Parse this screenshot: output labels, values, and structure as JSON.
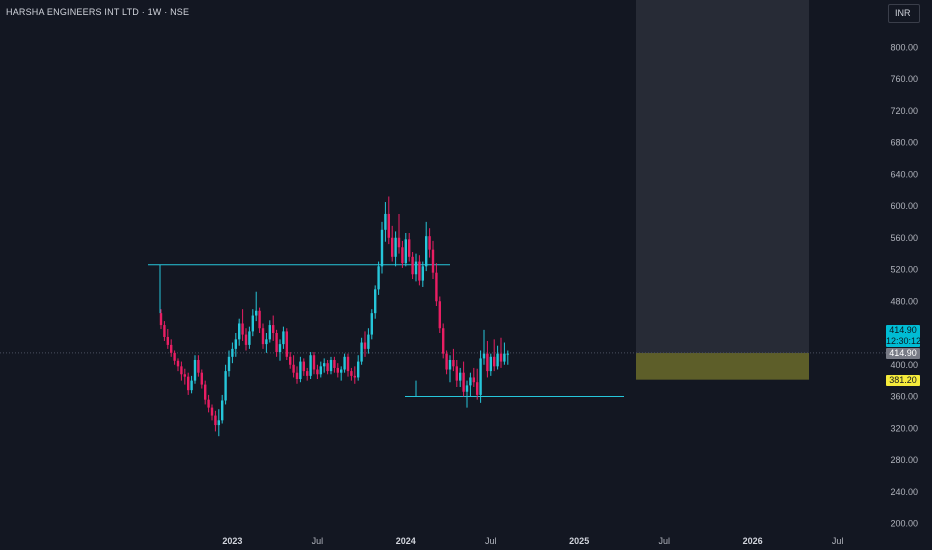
{
  "header": {
    "symbol": "HARSHA ENGINEERS INT LTD · 1W · NSE",
    "currency": "INR"
  },
  "price_labels": {
    "last": "414.90",
    "countdown": "12:30:12",
    "marker": "414.90",
    "stop": "381.20"
  },
  "colors": {
    "background": "#131722",
    "up": "#26c6da",
    "down": "#e91e63",
    "zone_gray": "#2a2e39",
    "zone_olive": "#6b6b2a",
    "trendline": "#26c6da"
  },
  "chart_data": {
    "type": "candlestick",
    "title": "HARSHA ENGINEERS INT LTD · 1W · NSE",
    "xlabel": "",
    "ylabel": "",
    "ylim": [
      200,
      830
    ],
    "y_ticks": [
      "800.00",
      "760.00",
      "720.00",
      "680.00",
      "640.00",
      "600.00",
      "560.00",
      "520.00",
      "480.00",
      "400.00",
      "360.00",
      "320.00",
      "280.00",
      "240.00",
      "200.00"
    ],
    "x_ticks": [
      {
        "label": "2023",
        "week": 21
      },
      {
        "label": "Jul",
        "week": 46
      },
      {
        "label": "2024",
        "week": 72
      },
      {
        "label": "Jul",
        "week": 97
      },
      {
        "label": "2025",
        "week": 123
      },
      {
        "label": "Jul",
        "week": 148
      },
      {
        "label": "2026",
        "week": 174
      },
      {
        "label": "Jul",
        "week": 199
      }
    ],
    "ohlc": [
      [
        465,
        470,
        445,
        450
      ],
      [
        450,
        455,
        430,
        435
      ],
      [
        435,
        445,
        420,
        425
      ],
      [
        425,
        432,
        410,
        415
      ],
      [
        415,
        418,
        400,
        405
      ],
      [
        405,
        408,
        392,
        398
      ],
      [
        398,
        404,
        380,
        388
      ],
      [
        388,
        395,
        375,
        385
      ],
      [
        385,
        390,
        362,
        368
      ],
      [
        368,
        386,
        364,
        380
      ],
      [
        380,
        412,
        376,
        406
      ],
      [
        406,
        412,
        385,
        390
      ],
      [
        390,
        394,
        370,
        375
      ],
      [
        375,
        380,
        350,
        356
      ],
      [
        356,
        362,
        340,
        346
      ],
      [
        346,
        350,
        330,
        336
      ],
      [
        336,
        342,
        316,
        324
      ],
      [
        324,
        344,
        310,
        330
      ],
      [
        330,
        362,
        326,
        355
      ],
      [
        355,
        400,
        350,
        392
      ],
      [
        392,
        418,
        385,
        410
      ],
      [
        410,
        428,
        402,
        420
      ],
      [
        420,
        440,
        410,
        432
      ],
      [
        432,
        458,
        424,
        452
      ],
      [
        452,
        470,
        430,
        438
      ],
      [
        438,
        446,
        418,
        425
      ],
      [
        425,
        448,
        420,
        442
      ],
      [
        442,
        470,
        436,
        462
      ],
      [
        462,
        492,
        455,
        468
      ],
      [
        468,
        472,
        440,
        446
      ],
      [
        446,
        452,
        420,
        426
      ],
      [
        426,
        440,
        415,
        432
      ],
      [
        432,
        456,
        428,
        450
      ],
      [
        450,
        462,
        430,
        440
      ],
      [
        440,
        444,
        410,
        416
      ],
      [
        416,
        432,
        405,
        426
      ],
      [
        426,
        448,
        420,
        442
      ],
      [
        442,
        446,
        406,
        410
      ],
      [
        410,
        416,
        395,
        400
      ],
      [
        400,
        412,
        384,
        390
      ],
      [
        390,
        398,
        376,
        382
      ],
      [
        382,
        410,
        378,
        404
      ],
      [
        404,
        408,
        386,
        392
      ],
      [
        392,
        396,
        380,
        386
      ],
      [
        386,
        416,
        382,
        412
      ],
      [
        412,
        416,
        388,
        394
      ],
      [
        394,
        400,
        382,
        388
      ],
      [
        388,
        404,
        384,
        398
      ],
      [
        398,
        408,
        390,
        402
      ],
      [
        402,
        406,
        388,
        392
      ],
      [
        392,
        410,
        388,
        406
      ],
      [
        406,
        410,
        390,
        396
      ],
      [
        396,
        402,
        384,
        390
      ],
      [
        390,
        398,
        380,
        394
      ],
      [
        394,
        414,
        390,
        410
      ],
      [
        410,
        414,
        385,
        392
      ],
      [
        392,
        396,
        380,
        386
      ],
      [
        386,
        398,
        376,
        384
      ],
      [
        384,
        412,
        380,
        404
      ],
      [
        404,
        434,
        400,
        428
      ],
      [
        428,
        442,
        410,
        420
      ],
      [
        420,
        446,
        414,
        438
      ],
      [
        438,
        470,
        432,
        465
      ],
      [
        465,
        500,
        458,
        495
      ],
      [
        495,
        530,
        488,
        524
      ],
      [
        524,
        580,
        515,
        570
      ],
      [
        570,
        605,
        555,
        590
      ],
      [
        590,
        612,
        552,
        560
      ],
      [
        560,
        575,
        530,
        536
      ],
      [
        536,
        568,
        524,
        560
      ],
      [
        560,
        590,
        540,
        548
      ],
      [
        548,
        556,
        522,
        528
      ],
      [
        528,
        566,
        524,
        558
      ],
      [
        558,
        566,
        530,
        536
      ],
      [
        536,
        542,
        508,
        514
      ],
      [
        514,
        540,
        505,
        530
      ],
      [
        530,
        538,
        500,
        506
      ],
      [
        506,
        530,
        498,
        524
      ],
      [
        524,
        580,
        518,
        562
      ],
      [
        562,
        572,
        535,
        545
      ],
      [
        545,
        556,
        508,
        516
      ],
      [
        516,
        528,
        474,
        480
      ],
      [
        480,
        486,
        440,
        446
      ],
      [
        446,
        452,
        408,
        414
      ],
      [
        414,
        418,
        388,
        394
      ],
      [
        394,
        412,
        378,
        406
      ],
      [
        406,
        420,
        392,
        398
      ],
      [
        398,
        406,
        372,
        380
      ],
      [
        380,
        396,
        372,
        390
      ],
      [
        390,
        404,
        360,
        366
      ],
      [
        366,
        380,
        346,
        374
      ],
      [
        374,
        390,
        360,
        384
      ],
      [
        384,
        396,
        372,
        378
      ],
      [
        378,
        395,
        356,
        362
      ],
      [
        362,
        418,
        352,
        408
      ],
      [
        408,
        444,
        400,
        414
      ],
      [
        414,
        430,
        384,
        392
      ],
      [
        392,
        414,
        386,
        410
      ],
      [
        410,
        432,
        392,
        398
      ],
      [
        398,
        424,
        394,
        414
      ],
      [
        414,
        434,
        396,
        404
      ],
      [
        404,
        428,
        400,
        414
      ],
      [
        414,
        418,
        400,
        414
      ]
    ],
    "levels": {
      "upper_box_top": 526,
      "lower_box_bottom": 360,
      "last": 414.9,
      "stop": 381.2,
      "zone_top": 830
    }
  }
}
